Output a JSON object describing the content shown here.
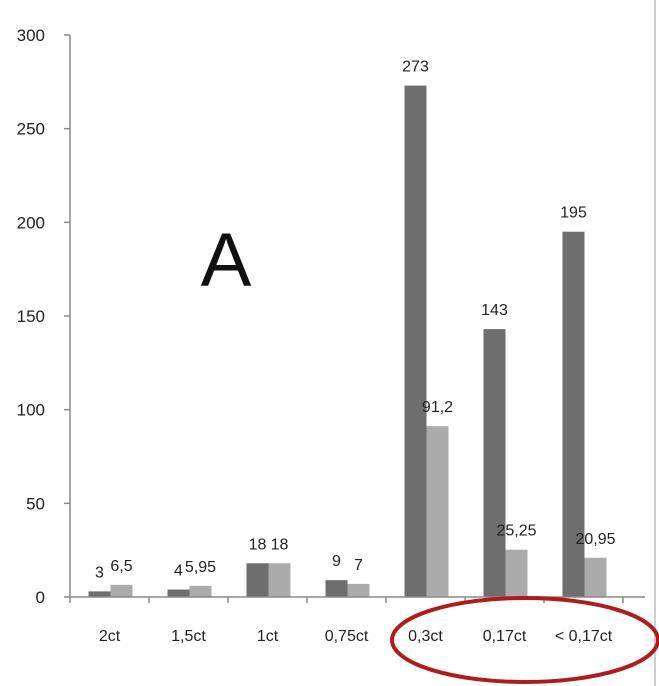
{
  "panel_letter": "A",
  "colors": {
    "series_dark": "#6e6e6e",
    "series_light": "#ababab",
    "highlight_ellipse": "#b01c1c",
    "axis": "#8a8a8a"
  },
  "chart_data": {
    "type": "bar",
    "categories": [
      "2ct",
      "1,5ct",
      "1ct",
      "0,75ct",
      "0,3ct",
      "0,17ct",
      "< 0,17ct"
    ],
    "series": [
      {
        "values": [
          3,
          4,
          18,
          9,
          273,
          143,
          195
        ],
        "labels": [
          "3",
          "4",
          "18",
          "9",
          "273",
          "143",
          "195"
        ]
      },
      {
        "values": [
          6.5,
          5.95,
          18,
          7,
          91.2,
          25.25,
          20.95
        ],
        "labels": [
          "6,5",
          "5,95",
          "18",
          "7",
          "91,2",
          "25,25",
          "20,95"
        ]
      }
    ],
    "ylim": [
      0,
      300
    ],
    "yticks": [
      0,
      50,
      100,
      150,
      200,
      250,
      300
    ],
    "grid": false,
    "highlighted_categories": [
      "0,3ct",
      "0,17ct",
      "< 0,17ct"
    ]
  }
}
